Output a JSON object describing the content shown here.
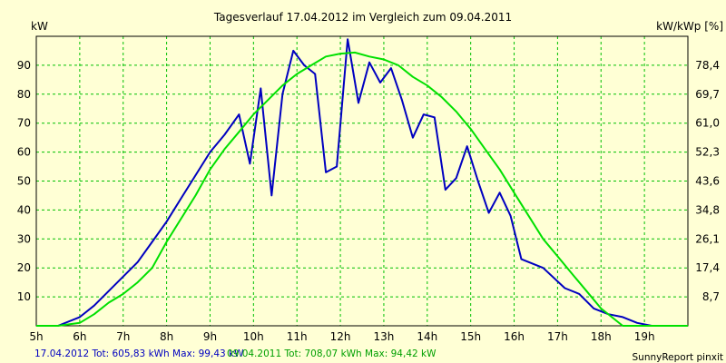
{
  "chart_data": {
    "type": "line",
    "title": "Tagesverlauf 17.04.2012 im Vergleich zum 09.04.2011",
    "ylabel": "kW",
    "y2label": "kW/kWp [%]",
    "ylim": [
      0,
      100
    ],
    "xlim": [
      5,
      20
    ],
    "grid": true,
    "x_ticks": [
      "5h",
      "6h",
      "7h",
      "8h",
      "9h",
      "10h",
      "11h",
      "12h",
      "13h",
      "14h",
      "15h",
      "16h",
      "17h",
      "18h",
      "19h"
    ],
    "y_ticks": [
      10,
      20,
      30,
      40,
      50,
      60,
      70,
      80,
      90
    ],
    "y2_ticks": [
      "8,7",
      "17,4",
      "26,1",
      "34,8",
      "43,6",
      "52,3",
      "61,0",
      "69,7",
      "78,4"
    ],
    "series": [
      {
        "name": "17.04.2012",
        "color": "#0000C0",
        "points": [
          [
            5.0,
            0
          ],
          [
            5.5,
            0
          ],
          [
            6.0,
            3
          ],
          [
            6.333,
            7
          ],
          [
            6.667,
            12
          ],
          [
            7.0,
            17
          ],
          [
            7.333,
            22
          ],
          [
            7.667,
            29
          ],
          [
            8.0,
            36
          ],
          [
            8.333,
            44
          ],
          [
            8.667,
            52
          ],
          [
            9.0,
            60
          ],
          [
            9.333,
            66
          ],
          [
            9.667,
            73
          ],
          [
            9.917,
            56
          ],
          [
            10.167,
            82
          ],
          [
            10.417,
            45
          ],
          [
            10.667,
            80
          ],
          [
            10.917,
            95
          ],
          [
            11.167,
            90
          ],
          [
            11.417,
            87
          ],
          [
            11.667,
            53
          ],
          [
            11.917,
            55
          ],
          [
            12.167,
            99
          ],
          [
            12.417,
            77
          ],
          [
            12.667,
            91
          ],
          [
            12.917,
            84
          ],
          [
            13.167,
            89
          ],
          [
            13.417,
            78
          ],
          [
            13.667,
            65
          ],
          [
            13.917,
            73
          ],
          [
            14.167,
            72
          ],
          [
            14.417,
            47
          ],
          [
            14.667,
            51
          ],
          [
            14.917,
            62
          ],
          [
            15.167,
            50
          ],
          [
            15.417,
            39
          ],
          [
            15.667,
            46
          ],
          [
            15.917,
            38
          ],
          [
            16.167,
            23
          ],
          [
            16.667,
            20
          ],
          [
            17.167,
            13
          ],
          [
            17.5,
            11
          ],
          [
            17.833,
            6
          ],
          [
            18.167,
            4
          ],
          [
            18.5,
            3
          ],
          [
            18.833,
            1
          ],
          [
            19.167,
            0
          ],
          [
            20.0,
            0
          ]
        ]
      },
      {
        "name": "09.04.2011",
        "color": "#00E000",
        "points": [
          [
            5.0,
            0
          ],
          [
            5.5,
            0
          ],
          [
            6.0,
            1
          ],
          [
            6.333,
            4
          ],
          [
            6.667,
            8
          ],
          [
            7.0,
            11
          ],
          [
            7.333,
            15
          ],
          [
            7.667,
            20
          ],
          [
            8.0,
            29
          ],
          [
            8.333,
            37
          ],
          [
            8.667,
            45
          ],
          [
            9.0,
            54
          ],
          [
            9.333,
            61
          ],
          [
            9.667,
            67
          ],
          [
            10.0,
            73
          ],
          [
            10.333,
            78
          ],
          [
            10.667,
            83
          ],
          [
            11.0,
            87
          ],
          [
            11.333,
            90
          ],
          [
            11.667,
            93
          ],
          [
            12.0,
            94
          ],
          [
            12.333,
            94.4
          ],
          [
            12.667,
            93
          ],
          [
            13.0,
            92
          ],
          [
            13.333,
            90
          ],
          [
            13.667,
            86
          ],
          [
            14.0,
            83
          ],
          [
            14.333,
            79
          ],
          [
            14.667,
            74
          ],
          [
            15.0,
            68
          ],
          [
            15.333,
            61
          ],
          [
            15.667,
            54
          ],
          [
            16.0,
            46
          ],
          [
            16.333,
            38
          ],
          [
            16.667,
            30
          ],
          [
            17.0,
            24
          ],
          [
            17.333,
            18
          ],
          [
            17.667,
            12
          ],
          [
            18.0,
            6
          ],
          [
            18.333,
            2
          ],
          [
            18.5,
            0
          ],
          [
            20.0,
            0
          ]
        ]
      }
    ]
  },
  "footer": {
    "series1_text": "17.04.2012 Tot: 605,83 kWh Max: 99,43 kW",
    "series2_text": "09.04.2011 Tot: 708,07 kWh Max: 94,42 kW",
    "credit": "SunnyReport pinxit"
  }
}
